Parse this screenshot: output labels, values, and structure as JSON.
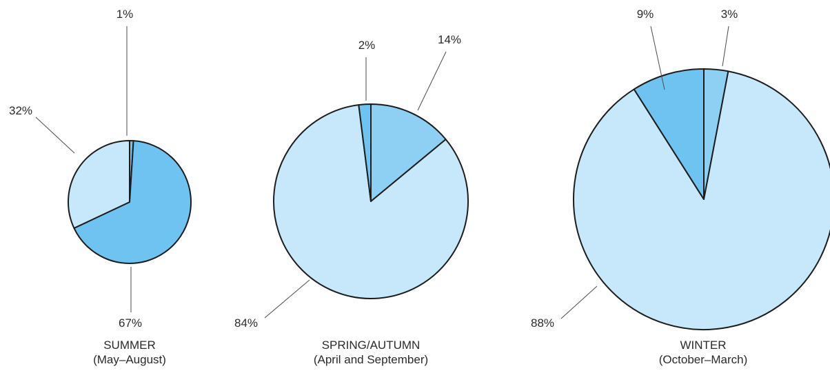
{
  "chart_data": [
    {
      "type": "pie",
      "title": "SUMMER",
      "subtitle": "(May–August)",
      "slices": [
        {
          "value": 1,
          "label": "1%",
          "color": "#6ec3f0"
        },
        {
          "value": 67,
          "label": "67%",
          "color": "#6ec3f0"
        },
        {
          "value": 32,
          "label": "32%",
          "color": "#c7e8fa"
        }
      ]
    },
    {
      "type": "pie",
      "title": "SPRING/AUTUMN",
      "subtitle": "(April and September)",
      "slices": [
        {
          "value": 14,
          "label": "14%",
          "color": "#8dd0f4"
        },
        {
          "value": 84,
          "label": "84%",
          "color": "#c7e8fa"
        },
        {
          "value": 2,
          "label": "2%",
          "color": "#6ec3f0"
        }
      ]
    },
    {
      "type": "pie",
      "title": "WINTER",
      "subtitle": "(October–March)",
      "slices": [
        {
          "value": 3,
          "label": "3%",
          "color": "#8dd0f4"
        },
        {
          "value": 88,
          "label": "88%",
          "color": "#c7e8fa"
        },
        {
          "value": 9,
          "label": "9%",
          "color": "#6ec3f0"
        }
      ]
    }
  ]
}
